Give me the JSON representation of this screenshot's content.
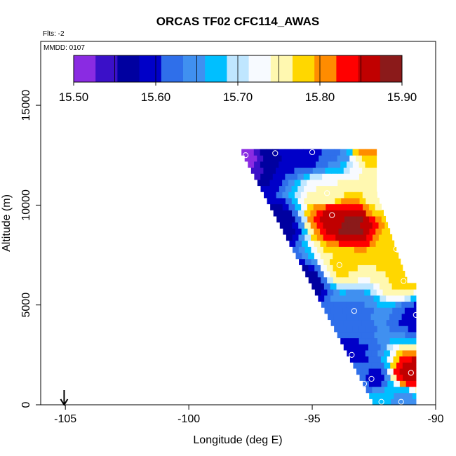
{
  "chart_data": {
    "type": "heatmap",
    "title": "ORCAS TF02 CFC114_AWAS",
    "flights_note": "Flts: -2",
    "date_note": "MMDD: 0107",
    "xlabel": "Longitude (deg E)",
    "ylabel": "Altitude (m)",
    "xlim": [
      -106.0,
      -90.0
    ],
    "ylim": [
      0,
      18200
    ],
    "x_ticks": [
      -105,
      -100,
      -95,
      -90
    ],
    "x_tick_labels": [
      "-105",
      "-100",
      "-95",
      "-90"
    ],
    "y_ticks": [
      0,
      5000,
      10000,
      15000
    ],
    "y_tick_labels": [
      "0",
      "5000",
      "10000",
      "15000"
    ],
    "grid": false,
    "legend": "colorbar at top",
    "colorbar": {
      "min": 15.5,
      "max": 15.9,
      "ticks": [
        15.5,
        15.6,
        15.7,
        15.8,
        15.9
      ],
      "tick_labels": [
        "15.50",
        "15.60",
        "15.70",
        "15.80",
        "15.90"
      ],
      "colors": [
        "#8A2BE2",
        "#3A10C8",
        "#0000A0",
        "#0000C8",
        "#2F6FEA",
        "#4090F0",
        "#00BFFF",
        "#BFE6FF",
        "#F7FAFF",
        "#FFF8B0",
        "#FFD700",
        "#FF8C00",
        "#FF0000",
        "#C00000",
        "#8B1A1A"
      ]
    },
    "arrow_marker": {
      "longitude": -105.05,
      "label": ""
    },
    "field": {
      "description_key": "diagonal band of interpolated cells",
      "bottom_edge": [
        [
          -91.6,
          0
        ],
        [
          -90.7,
          0
        ]
      ],
      "nodes": [
        {
          "lon": -97.7,
          "alt": 12450,
          "value": 15.52
        },
        {
          "lon": -96.5,
          "alt": 12550,
          "value": 15.58
        },
        {
          "lon": -95.0,
          "alt": 12650,
          "value": 15.6
        },
        {
          "lon": -94.1,
          "alt": 12900,
          "value": 15.63
        },
        {
          "lon": -92.8,
          "alt": 13100,
          "value": 15.8
        },
        {
          "lon": -94.4,
          "alt": 10600,
          "value": 15.74
        },
        {
          "lon": -94.2,
          "alt": 9500,
          "value": 15.85
        },
        {
          "lon": -93.5,
          "alt": 9000,
          "value": 15.88
        },
        {
          "lon": -92.1,
          "alt": 10400,
          "value": 15.76
        },
        {
          "lon": -91.6,
          "alt": 7800,
          "value": 15.78
        },
        {
          "lon": -93.9,
          "alt": 7000,
          "value": 15.77
        },
        {
          "lon": -91.3,
          "alt": 6200,
          "value": 15.77
        },
        {
          "lon": -96.4,
          "alt": 9000,
          "value": 15.56
        },
        {
          "lon": -95.2,
          "alt": 6200,
          "value": 15.56
        },
        {
          "lon": -93.3,
          "alt": 4700,
          "value": 15.63
        },
        {
          "lon": -90.8,
          "alt": 4500,
          "value": 15.6
        },
        {
          "lon": -93.4,
          "alt": 2500,
          "value": 15.6
        },
        {
          "lon": -92.6,
          "alt": 1300,
          "value": 15.6
        },
        {
          "lon": -91.0,
          "alt": 1600,
          "value": 15.86
        },
        {
          "lon": -93.3,
          "alt": 1100,
          "value": 15.65
        },
        {
          "lon": -92.2,
          "alt": 200,
          "value": 15.68
        },
        {
          "lon": -91.4,
          "alt": 200,
          "value": 15.64
        }
      ],
      "sample_points": [
        {
          "lon": -97.7,
          "alt": 12500
        },
        {
          "lon": -96.5,
          "alt": 12600
        },
        {
          "lon": -95.0,
          "alt": 12650
        },
        {
          "lon": -92.8,
          "alt": 13100
        },
        {
          "lon": -94.4,
          "alt": 10600
        },
        {
          "lon": -94.2,
          "alt": 9500
        },
        {
          "lon": -92.1,
          "alt": 10400
        },
        {
          "lon": -91.6,
          "alt": 7800
        },
        {
          "lon": -93.9,
          "alt": 7000
        },
        {
          "lon": -91.3,
          "alt": 6200
        },
        {
          "lon": -93.3,
          "alt": 4700
        },
        {
          "lon": -90.8,
          "alt": 4500
        },
        {
          "lon": -93.4,
          "alt": 2500
        },
        {
          "lon": -92.6,
          "alt": 1300
        },
        {
          "lon": -93.3,
          "alt": 1100
        },
        {
          "lon": -92.9,
          "alt": 1050
        },
        {
          "lon": -91.0,
          "alt": 1600
        },
        {
          "lon": -92.2,
          "alt": 150
        },
        {
          "lon": -91.4,
          "alt": 150
        }
      ]
    }
  }
}
